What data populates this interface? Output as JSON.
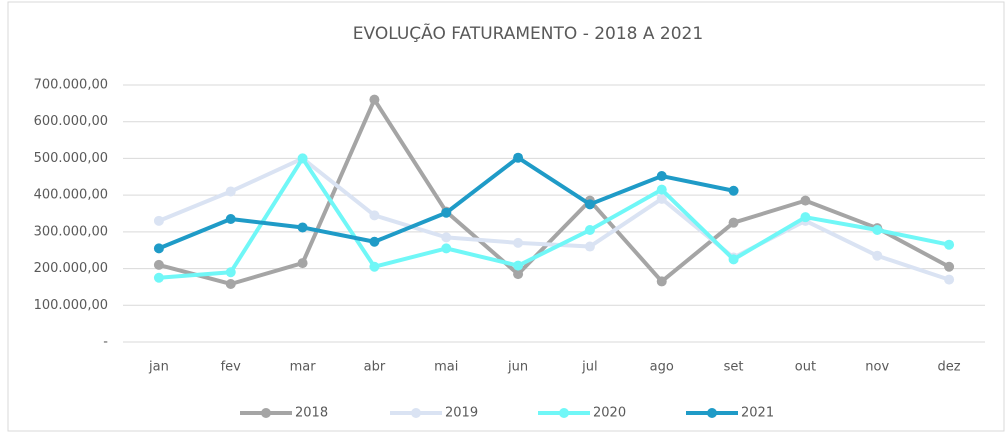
{
  "chart_data": {
    "type": "line",
    "title": "EVOLUÇÃO FATURAMENTO - 2018 A 2021",
    "categories": [
      "jan",
      "fev",
      "mar",
      "abr",
      "mai",
      "jun",
      "jul",
      "ago",
      "set",
      "out",
      "nov",
      "dez"
    ],
    "series": [
      {
        "name": "2018",
        "color": "#a5a5a5",
        "values": [
          210000,
          158000,
          215000,
          660000,
          355000,
          185000,
          385000,
          165000,
          325000,
          385000,
          310000,
          205000
        ]
      },
      {
        "name": "2019",
        "color": "#dae3f3",
        "values": [
          330000,
          410000,
          500000,
          345000,
          285000,
          270000,
          260000,
          390000,
          230000,
          330000,
          235000,
          170000
        ]
      },
      {
        "name": "2020",
        "color": "#70f7f7",
        "values": [
          175000,
          190000,
          500000,
          205000,
          255000,
          208000,
          305000,
          415000,
          225000,
          340000,
          305000,
          265000
        ]
      },
      {
        "name": "2021",
        "color": "#1f9bc7",
        "values": [
          255000,
          335000,
          312000,
          273000,
          352000,
          502000,
          375000,
          452000,
          412000,
          null,
          null,
          null
        ]
      }
    ],
    "ylim": [
      0,
      700000
    ],
    "yticks": [
      {
        "value": 0,
        "label": "-"
      },
      {
        "value": 100000,
        "label": "100.000,00"
      },
      {
        "value": 200000,
        "label": "200.000,00"
      },
      {
        "value": 300000,
        "label": "300.000,00"
      },
      {
        "value": 400000,
        "label": "400.000,00"
      },
      {
        "value": 500000,
        "label": "500.000,00"
      },
      {
        "value": 600000,
        "label": "600.000,00"
      },
      {
        "value": 700000,
        "label": "700.000,00"
      }
    ],
    "grid": true,
    "legend": "bottom"
  }
}
